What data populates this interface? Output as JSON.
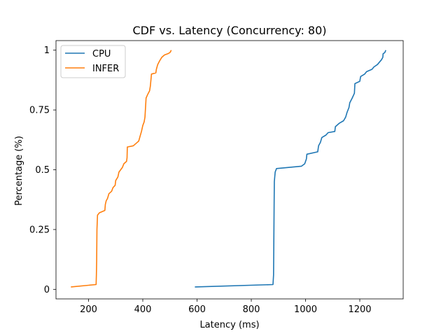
{
  "chart_data": {
    "type": "line",
    "title": "CDF vs. Latency (Concurrency: 80)",
    "xlabel": "Latency (ms)",
    "ylabel": "Percentage (%)",
    "xlim": [
      80,
      1360
    ],
    "ylim": [
      -0.04,
      1.04
    ],
    "xticks": [
      200,
      400,
      600,
      800,
      1000,
      1200
    ],
    "xtick_labels": [
      "200",
      "400",
      "600",
      "800",
      "1000",
      "1200"
    ],
    "yticks": [
      0,
      0.25,
      0.5,
      0.75,
      1
    ],
    "ytick_labels": [
      "0",
      "0.25",
      "0.5",
      "0.75",
      "1"
    ],
    "grid": false,
    "legend": "top-left",
    "series": [
      {
        "name": "CPU",
        "color": "#1f77b4",
        "points": [
          [
            592,
            0.01
          ],
          [
            880,
            0.02
          ],
          [
            882,
            0.06
          ],
          [
            883,
            0.2
          ],
          [
            884,
            0.35
          ],
          [
            885,
            0.45
          ],
          [
            888,
            0.49
          ],
          [
            893,
            0.505
          ],
          [
            985,
            0.515
          ],
          [
            997,
            0.525
          ],
          [
            1003,
            0.545
          ],
          [
            1005,
            0.565
          ],
          [
            1045,
            0.575
          ],
          [
            1048,
            0.6
          ],
          [
            1055,
            0.615
          ],
          [
            1060,
            0.635
          ],
          [
            1075,
            0.645
          ],
          [
            1083,
            0.655
          ],
          [
            1108,
            0.66
          ],
          [
            1110,
            0.68
          ],
          [
            1125,
            0.695
          ],
          [
            1140,
            0.705
          ],
          [
            1148,
            0.72
          ],
          [
            1153,
            0.74
          ],
          [
            1160,
            0.76
          ],
          [
            1163,
            0.78
          ],
          [
            1172,
            0.8
          ],
          [
            1180,
            0.82
          ],
          [
            1182,
            0.86
          ],
          [
            1200,
            0.87
          ],
          [
            1203,
            0.89
          ],
          [
            1218,
            0.9
          ],
          [
            1225,
            0.91
          ],
          [
            1245,
            0.92
          ],
          [
            1252,
            0.93
          ],
          [
            1265,
            0.94
          ],
          [
            1280,
            0.96
          ],
          [
            1285,
            0.97
          ],
          [
            1286,
            0.985
          ],
          [
            1292,
            0.99
          ],
          [
            1296,
            1.0
          ]
        ]
      },
      {
        "name": "INFER",
        "color": "#ff7f0e",
        "points": [
          [
            135,
            0.01
          ],
          [
            228,
            0.02
          ],
          [
            229,
            0.06
          ],
          [
            230,
            0.12
          ],
          [
            231,
            0.25
          ],
          [
            233,
            0.31
          ],
          [
            240,
            0.32
          ],
          [
            260,
            0.33
          ],
          [
            262,
            0.355
          ],
          [
            265,
            0.37
          ],
          [
            270,
            0.38
          ],
          [
            275,
            0.4
          ],
          [
            285,
            0.41
          ],
          [
            290,
            0.425
          ],
          [
            298,
            0.435
          ],
          [
            300,
            0.455
          ],
          [
            308,
            0.47
          ],
          [
            312,
            0.49
          ],
          [
            325,
            0.51
          ],
          [
            330,
            0.525
          ],
          [
            340,
            0.535
          ],
          [
            342,
            0.55
          ],
          [
            343,
            0.595
          ],
          [
            365,
            0.6
          ],
          [
            380,
            0.615
          ],
          [
            385,
            0.62
          ],
          [
            390,
            0.64
          ],
          [
            395,
            0.66
          ],
          [
            400,
            0.685
          ],
          [
            405,
            0.7
          ],
          [
            408,
            0.72
          ],
          [
            410,
            0.76
          ],
          [
            412,
            0.8
          ],
          [
            418,
            0.815
          ],
          [
            425,
            0.83
          ],
          [
            428,
            0.85
          ],
          [
            432,
            0.9
          ],
          [
            448,
            0.905
          ],
          [
            450,
            0.92
          ],
          [
            455,
            0.94
          ],
          [
            462,
            0.955
          ],
          [
            470,
            0.97
          ],
          [
            480,
            0.98
          ],
          [
            492,
            0.985
          ],
          [
            500,
            0.99
          ],
          [
            505,
            1.0
          ]
        ]
      }
    ]
  }
}
